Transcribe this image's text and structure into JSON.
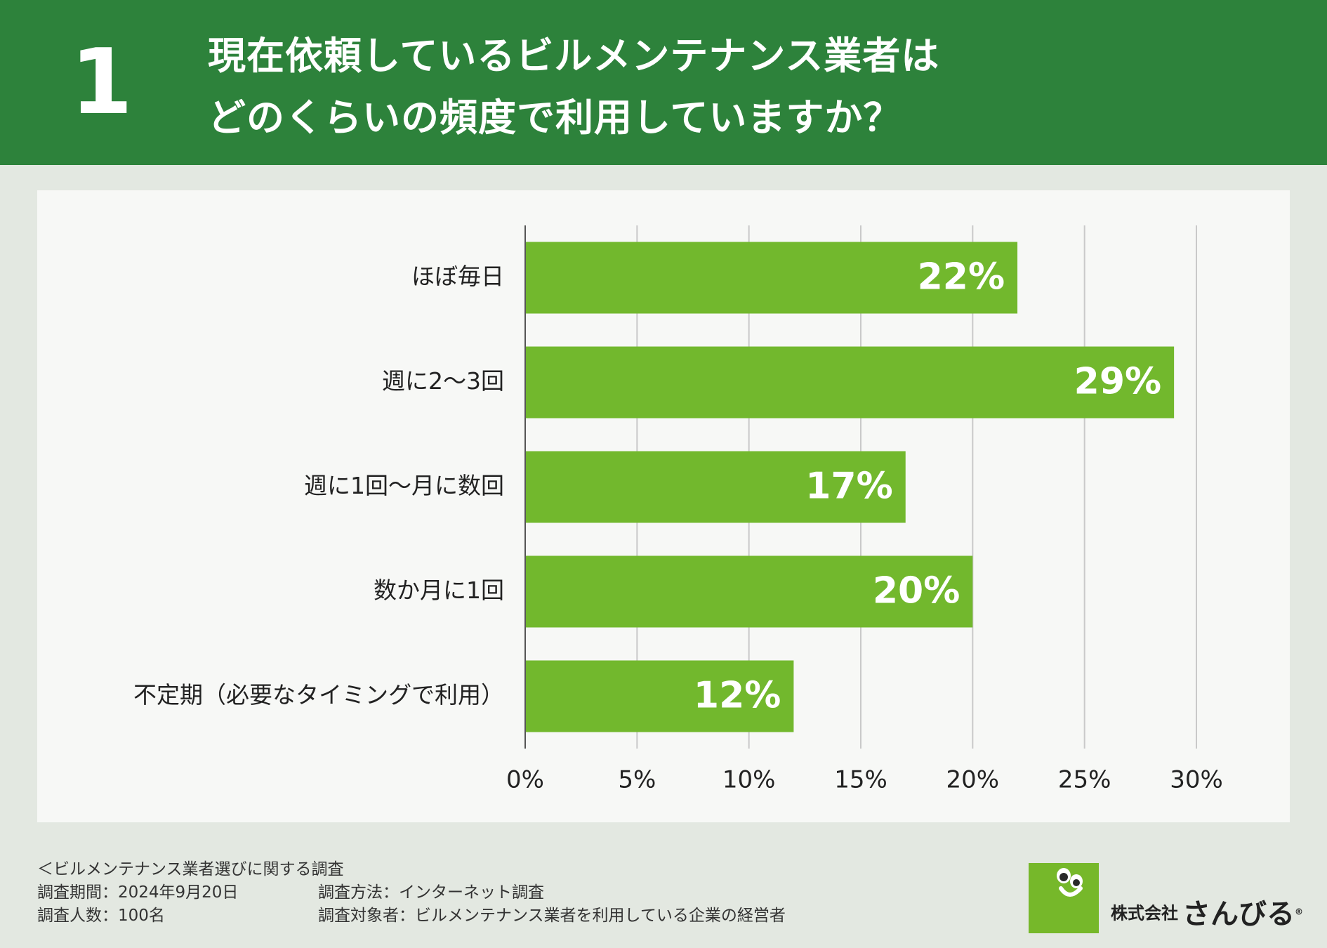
{
  "header": {
    "number": "1",
    "title_line1": "現在依頼しているビルメンテナンス業者は",
    "title_line2": "どのくらいの頻度で利用していますか？"
  },
  "chart_data": {
    "type": "bar",
    "orientation": "horizontal",
    "categories": [
      "ほぼ毎日",
      "週に2〜3回",
      "週に1回〜月に数回",
      "数か月に1回",
      "不定期（必要なタイミングで利用）"
    ],
    "values": [
      22,
      29,
      17,
      20,
      12
    ],
    "value_labels": [
      "22%",
      "29%",
      "17%",
      "20%",
      "12%"
    ],
    "xlim": [
      0,
      30
    ],
    "ticks": [
      0,
      5,
      10,
      15,
      20,
      25,
      30
    ],
    "tick_labels": [
      "0%",
      "5%",
      "10%",
      "15%",
      "20%",
      "25%",
      "30%"
    ],
    "grid": true,
    "legend": "none",
    "title": "",
    "xlabel": "",
    "ylabel": "",
    "bar_color": "#72b82d"
  },
  "footer": {
    "survey_title": "＜ビルメンテナンス業者選びに関する調査",
    "period": "調査期間：2024年9月20日",
    "method": "調査方法：インターネット調査",
    "respondents": "調査人数：100名",
    "target": "調査対象者：ビルメンテナンス業者を利用している企業の経営者"
  },
  "logo": {
    "corp": "株式会社",
    "brand": "さんびる",
    "registered": "®"
  },
  "colors": {
    "header_bg": "#2d823b",
    "bar": "#72b82d",
    "logo_green": "#76b82a"
  }
}
